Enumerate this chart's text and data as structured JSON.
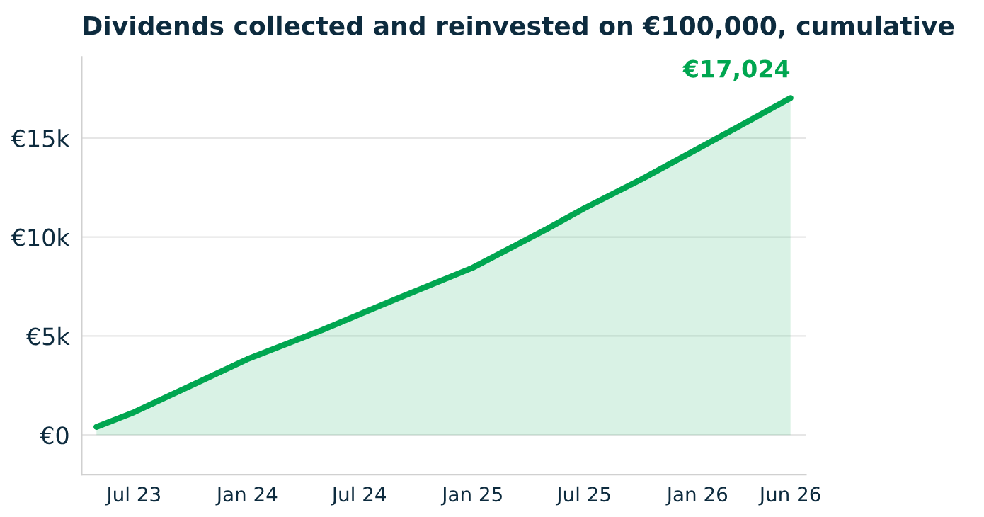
{
  "chart_data": {
    "type": "area",
    "title": "Dividends collected and reinvested on €100,000, cumulative",
    "x": [
      "2023-05",
      "2023-07",
      "2024-01",
      "2024-05",
      "2024-09",
      "2025-01",
      "2025-05",
      "2025-07",
      "2025-10",
      "2026-01",
      "2026-03",
      "2026-06"
    ],
    "series": [
      {
        "color": "#00a650",
        "values": [
          410,
          1150,
          3830,
          5300,
          6900,
          8450,
          10400,
          11450,
          12900,
          14450,
          15450,
          17024
        ]
      }
    ],
    "annotations": [
      {
        "text": "€17,024",
        "x": "2026-06",
        "y": 17024
      }
    ],
    "xlim": [
      "2023-04-07",
      "2026-06-26"
    ],
    "xticks": [
      {
        "value": "2023-07",
        "label": "Jul 23"
      },
      {
        "value": "2024-01",
        "label": "Jan 24"
      },
      {
        "value": "2024-07",
        "label": "Jul 24"
      },
      {
        "value": "2025-01",
        "label": "Jan 25"
      },
      {
        "value": "2025-07",
        "label": "Jul 25"
      },
      {
        "value": "2026-01",
        "label": "Jan 26"
      },
      {
        "value": "2026-06",
        "label": "Jun 26"
      }
    ],
    "ylim": [
      -2000,
      19100
    ],
    "yticks": [
      {
        "value": 0,
        "label": "€0"
      },
      {
        "value": 5000,
        "label": "€5k"
      },
      {
        "value": 10000,
        "label": "€10k"
      },
      {
        "value": 15000,
        "label": "€15k"
      }
    ],
    "grid": "y",
    "legend": false
  }
}
